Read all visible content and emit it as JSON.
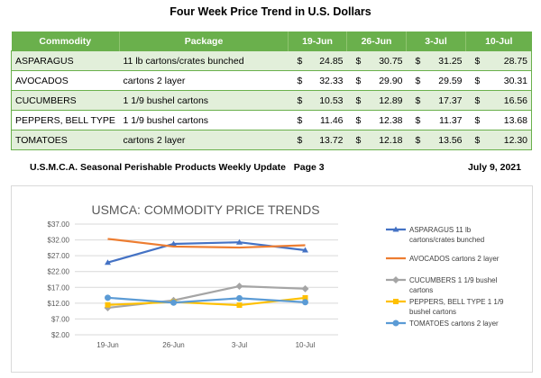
{
  "table": {
    "title": "Four Week Price Trend in U.S. Dollars",
    "headers": {
      "commodity": "Commodity",
      "package": "Package",
      "dates": [
        "19-Jun",
        "26-Jun",
        "3-Jul",
        "10-Jul"
      ]
    },
    "currency_symbol": "$",
    "rows": [
      {
        "commodity": "ASPARAGUS",
        "package": "11 lb cartons/crates bunched",
        "prices": [
          "24.85",
          "30.75",
          "31.25",
          "28.75"
        ]
      },
      {
        "commodity": "AVOCADOS",
        "package": "cartons 2 layer",
        "prices": [
          "32.33",
          "29.90",
          "29.59",
          "30.31"
        ]
      },
      {
        "commodity": "CUCUMBERS",
        "package": "1 1/9 bushel cartons",
        "prices": [
          "10.53",
          "12.89",
          "17.37",
          "16.56"
        ]
      },
      {
        "commodity": "PEPPERS, BELL TYPE",
        "package": "1 1/9 bushel cartons",
        "prices": [
          "11.46",
          "12.38",
          "11.37",
          "13.68"
        ]
      },
      {
        "commodity": "TOMATOES",
        "package": "cartons 2 layer",
        "prices": [
          "13.72",
          "12.18",
          "13.56",
          "12.30"
        ]
      }
    ]
  },
  "report": {
    "title": "U.S.M.C.A. Seasonal Perishable Products Weekly Update   Page 3",
    "date": "July 9, 2021"
  },
  "chart_data": {
    "type": "line",
    "title": "USMCA: COMMODITY PRICE TRENDS",
    "categories": [
      "19-Jun",
      "26-Jun",
      "3-Jul",
      "10-Jul"
    ],
    "ylim": [
      2,
      37
    ],
    "yticks": [
      "$2.00",
      "$7.00",
      "$12.00",
      "$17.00",
      "$22.00",
      "$27.00",
      "$32.00",
      "$37.00"
    ],
    "grid": true,
    "legend_position": "right",
    "series": [
      {
        "name": "ASPARAGUS 11 lb cartons/crates bunched",
        "legend_lines": [
          "ASPARAGUS 11 lb",
          "cartons/crates bunched"
        ],
        "color": "#4472c4",
        "values": [
          24.85,
          30.75,
          31.25,
          28.75
        ]
      },
      {
        "name": "AVOCADOS cartons 2 layer",
        "legend_lines": [
          "AVOCADOS cartons 2 layer"
        ],
        "color": "#ed7d31",
        "values": [
          32.33,
          29.9,
          29.59,
          30.31
        ]
      },
      {
        "name": "CUCUMBERS 1 1/9 bushel cartons",
        "legend_lines": [
          "CUCUMBERS 1 1/9 bushel",
          "cartons"
        ],
        "color": "#a5a5a5",
        "values": [
          10.53,
          12.89,
          17.37,
          16.56
        ]
      },
      {
        "name": "PEPPERS, BELL TYPE 1 1/9 bushel cartons",
        "legend_lines": [
          "PEPPERS, BELL TYPE 1 1/9",
          "bushel cartons"
        ],
        "color": "#ffc000",
        "values": [
          11.46,
          12.38,
          11.37,
          13.68
        ]
      },
      {
        "name": "TOMATOES cartons 2 layer",
        "legend_lines": [
          "TOMATOES cartons 2 layer"
        ],
        "color": "#5b9bd5",
        "values": [
          13.72,
          12.18,
          13.56,
          12.3
        ]
      }
    ]
  }
}
